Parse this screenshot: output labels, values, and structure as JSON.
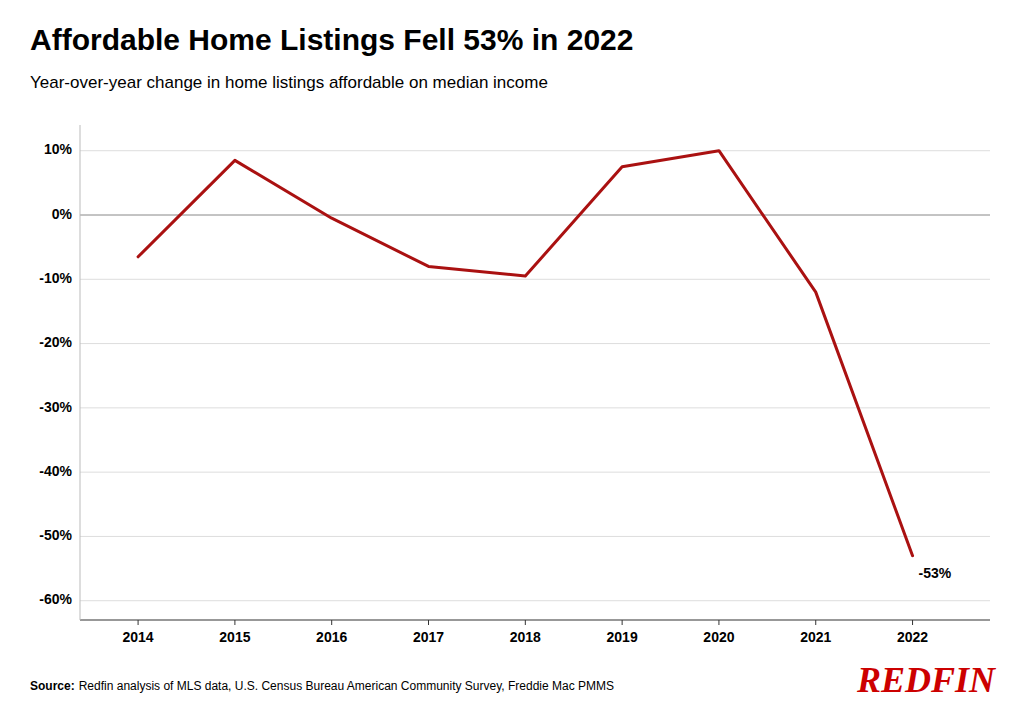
{
  "chart_data": {
    "type": "line",
    "title": "Affordable Home Listings Fell 53% in 2022",
    "subtitle": "Year-over-year change in home listings affordable on median income",
    "source_label": "Source:",
    "source": "Redfin analysis of MLS data, U.S. Census Bureau American Community Survey, Freddie Mac PMMS",
    "logo": {
      "text": "REDFIN",
      "color": "#CC0000"
    },
    "x": [
      2014,
      2015,
      2016,
      2017,
      2018,
      2019,
      2020,
      2021,
      2022
    ],
    "values": [
      -6.5,
      8.5,
      -0.5,
      -8.0,
      -9.5,
      7.5,
      10.0,
      -12.0,
      -53.0
    ],
    "color": "#AA1111",
    "xlim": [
      2013.4,
      2022.8
    ],
    "xticks": [
      2014,
      2015,
      2016,
      2017,
      2018,
      2019,
      2020,
      2021,
      2022
    ],
    "ylim": [
      -63,
      14
    ],
    "yticks": [
      {
        "value": 10,
        "label": "10%"
      },
      {
        "value": 0,
        "label": "0%"
      },
      {
        "value": -10,
        "label": "-10%"
      },
      {
        "value": -20,
        "label": "-20%"
      },
      {
        "value": -30,
        "label": "-30%"
      },
      {
        "value": -40,
        "label": "-40%"
      },
      {
        "value": -50,
        "label": "-50%"
      },
      {
        "value": -60,
        "label": "-60%"
      }
    ],
    "grid": true,
    "annotations": [
      {
        "text": "-53%",
        "x": 2022,
        "y": -53
      }
    ]
  }
}
